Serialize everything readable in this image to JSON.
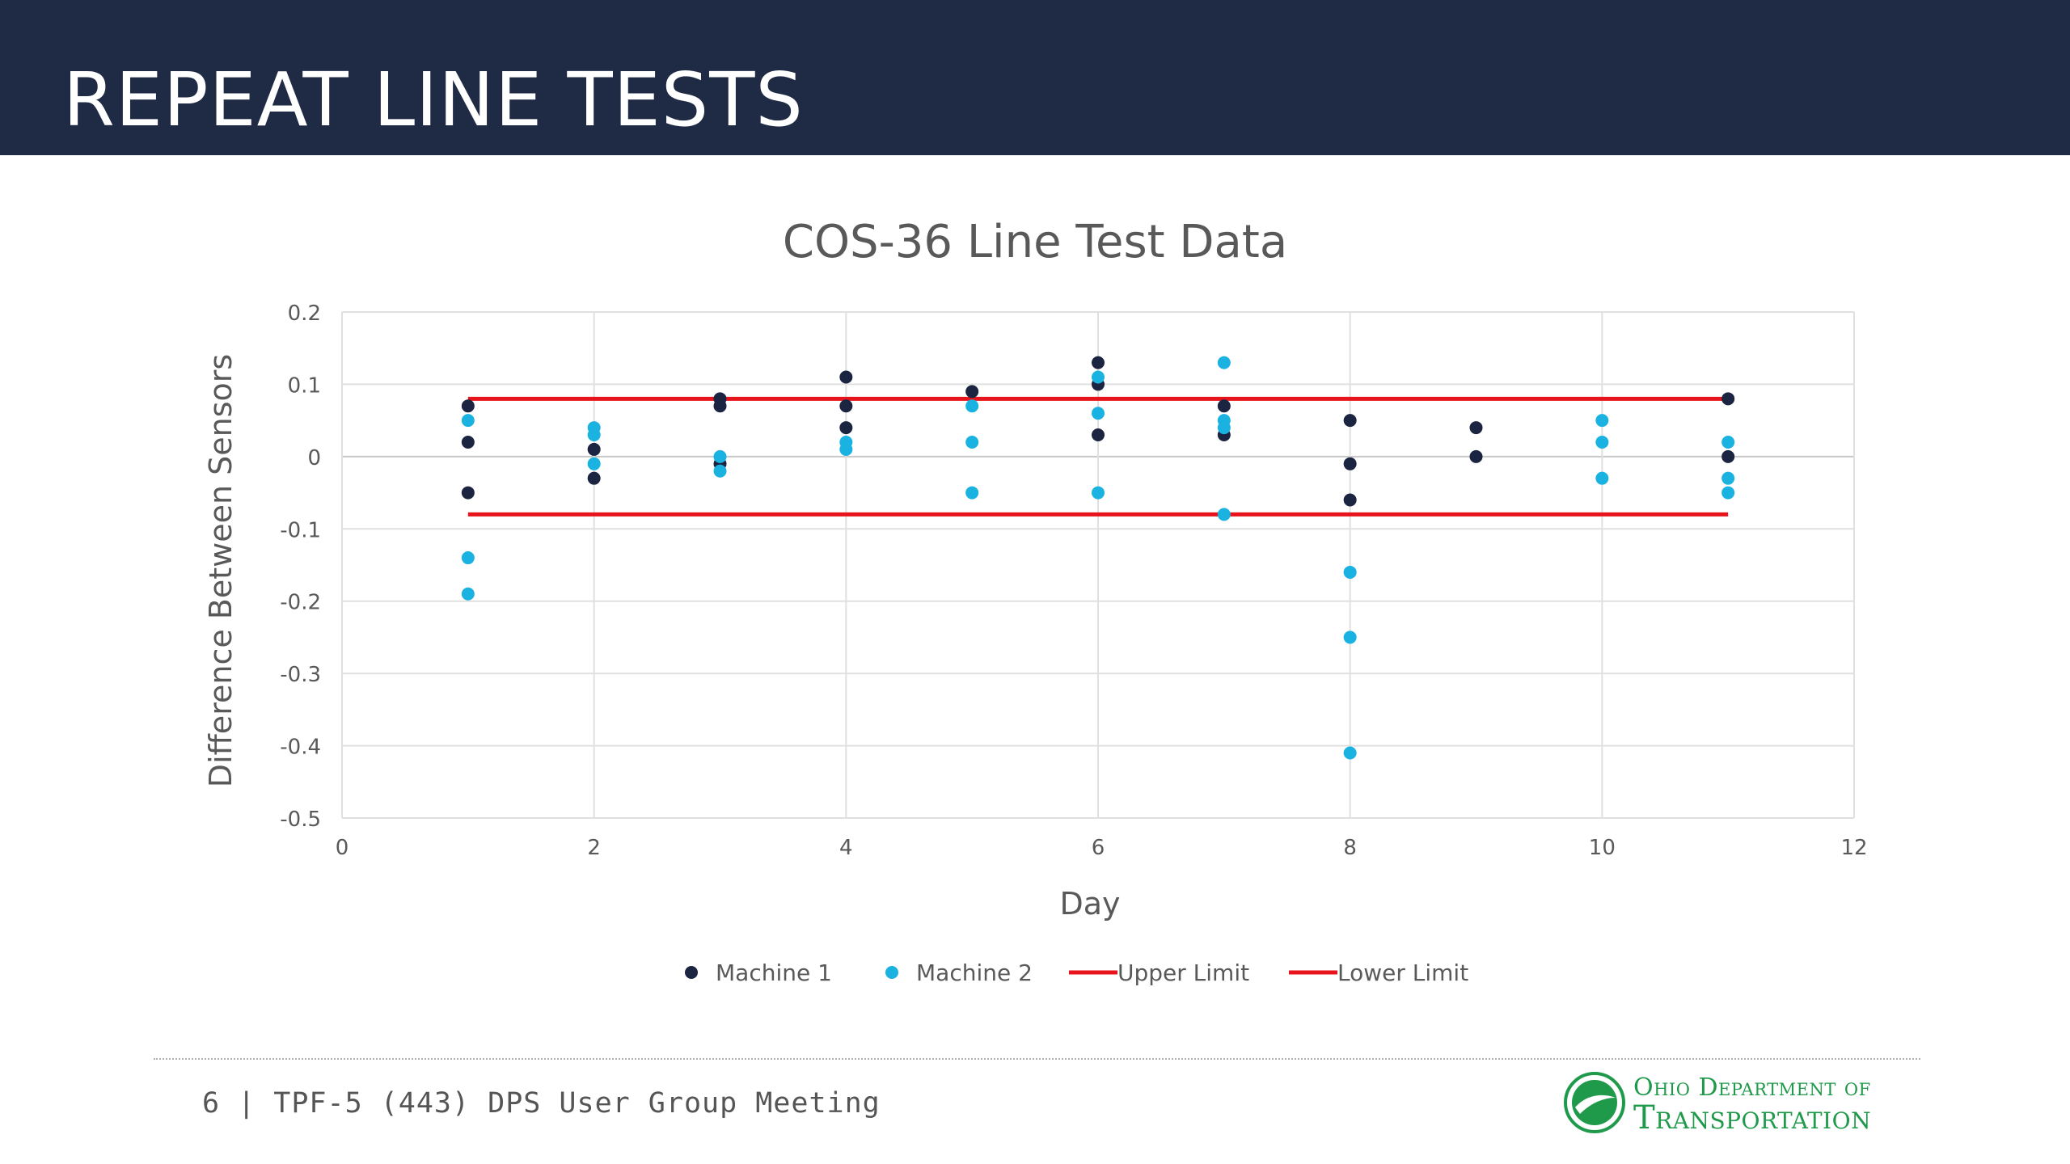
{
  "slide": {
    "title": "REPEAT LINE TESTS",
    "footer": "6 | TPF-5 (443) DPS User Group Meeting",
    "logo": {
      "line1": "Ohio Department of",
      "line2": "Transportation"
    }
  },
  "colors": {
    "title_bar": "#1f2a44",
    "machine1": "#1b2440",
    "machine2": "#1ab2e0",
    "limits": "#e8141b",
    "logo_green": "#1f9a4a"
  },
  "chart_data": {
    "type": "scatter",
    "title": "COS-36 Line Test Data",
    "xlabel": "Day",
    "ylabel": "Difference Between Sensors",
    "xlim": [
      0,
      12
    ],
    "ylim": [
      -0.5,
      0.2
    ],
    "xticks": [
      0,
      2,
      4,
      6,
      8,
      10,
      12
    ],
    "yticks": [
      0.2,
      0.1,
      0,
      -0.1,
      -0.2,
      -0.3,
      -0.4,
      -0.5
    ],
    "xtick_labels": [
      "0",
      "2",
      "4",
      "6",
      "8",
      "10",
      "12"
    ],
    "ytick_labels": [
      "0.2",
      "0.1",
      "0",
      "-0.1",
      "-0.2",
      "-0.3",
      "-0.4",
      "-0.5"
    ],
    "grid": true,
    "legend_position": "bottom",
    "series": [
      {
        "name": "Machine 1",
        "kind": "scatter",
        "color": "#1b2440",
        "points": [
          [
            1,
            0.07
          ],
          [
            1,
            0.02
          ],
          [
            1,
            -0.05
          ],
          [
            2,
            0.01
          ],
          [
            2,
            -0.03
          ],
          [
            3,
            0.08
          ],
          [
            3,
            0.07
          ],
          [
            3,
            -0.01
          ],
          [
            4,
            0.11
          ],
          [
            4,
            0.07
          ],
          [
            4,
            0.04
          ],
          [
            5,
            0.09
          ],
          [
            6,
            0.13
          ],
          [
            6,
            0.1
          ],
          [
            6,
            0.03
          ],
          [
            7,
            0.07
          ],
          [
            7,
            0.03
          ],
          [
            8,
            0.05
          ],
          [
            8,
            -0.01
          ],
          [
            8,
            -0.06
          ],
          [
            9,
            0.04
          ],
          [
            9,
            0.0
          ],
          [
            11,
            0.08
          ],
          [
            11,
            0.0
          ]
        ]
      },
      {
        "name": "Machine 2",
        "kind": "scatter",
        "color": "#1ab2e0",
        "points": [
          [
            1,
            0.05
          ],
          [
            1,
            -0.14
          ],
          [
            1,
            -0.19
          ],
          [
            2,
            0.04
          ],
          [
            2,
            0.03
          ],
          [
            2,
            -0.01
          ],
          [
            3,
            0.0
          ],
          [
            3,
            -0.02
          ],
          [
            4,
            0.02
          ],
          [
            4,
            0.01
          ],
          [
            5,
            0.07
          ],
          [
            5,
            0.02
          ],
          [
            5,
            -0.05
          ],
          [
            6,
            0.11
          ],
          [
            6,
            0.06
          ],
          [
            6,
            -0.05
          ],
          [
            7,
            0.13
          ],
          [
            7,
            0.05
          ],
          [
            7,
            0.04
          ],
          [
            7,
            -0.08
          ],
          [
            8,
            -0.16
          ],
          [
            8,
            -0.25
          ],
          [
            8,
            -0.41
          ],
          [
            10,
            0.05
          ],
          [
            10,
            0.02
          ],
          [
            10,
            -0.03
          ],
          [
            11,
            0.02
          ],
          [
            11,
            -0.03
          ],
          [
            11,
            -0.05
          ]
        ]
      },
      {
        "name": "Upper Limit",
        "kind": "line",
        "color": "#e8141b",
        "points": [
          [
            1,
            0.08
          ],
          [
            11,
            0.08
          ]
        ]
      },
      {
        "name": "Lower Limit",
        "kind": "line",
        "color": "#e8141b",
        "points": [
          [
            1,
            -0.08
          ],
          [
            11,
            -0.08
          ]
        ]
      }
    ]
  }
}
